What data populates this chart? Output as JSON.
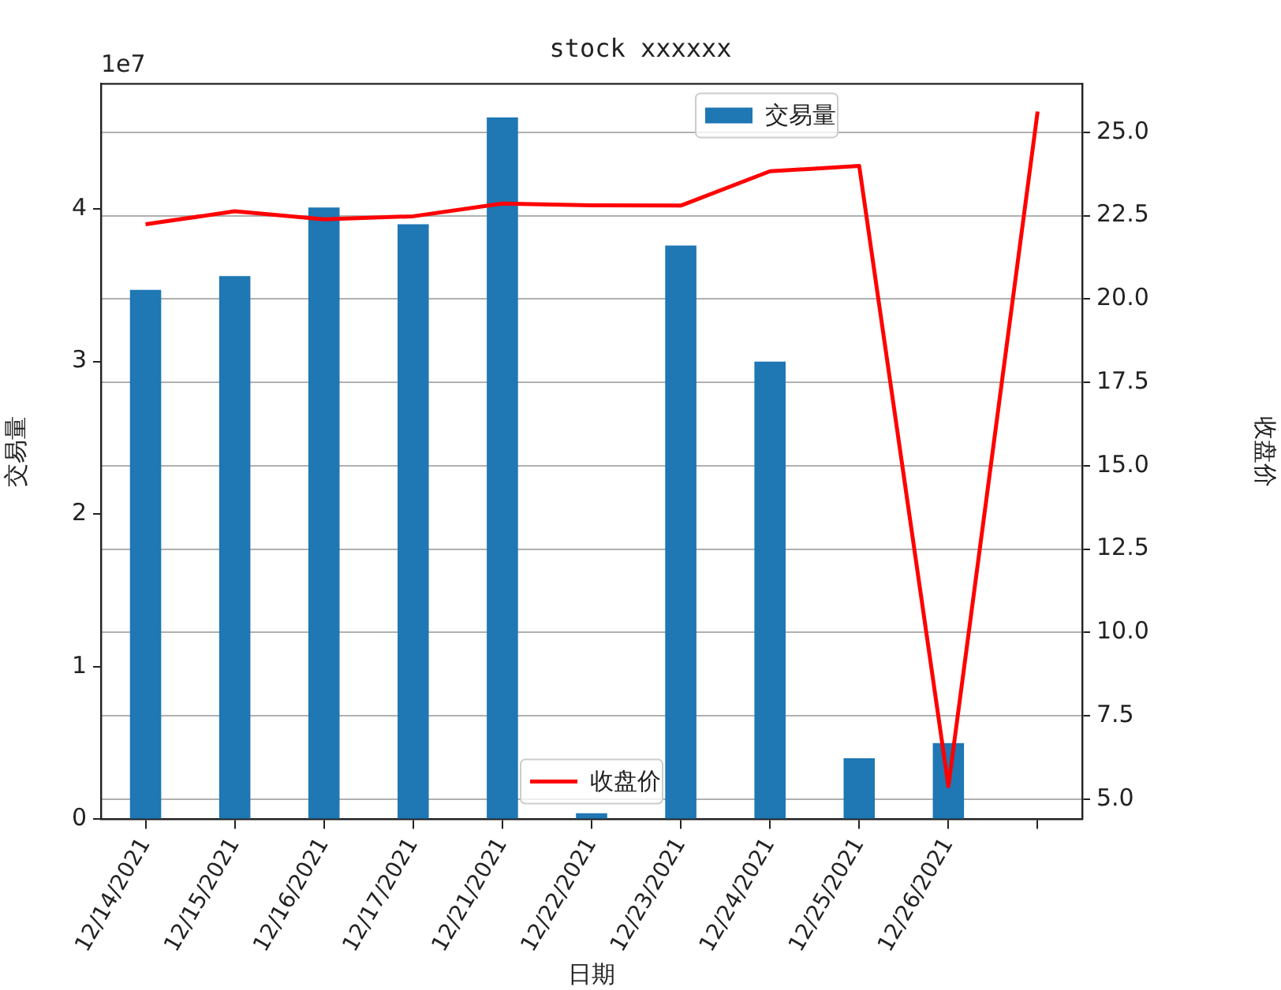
{
  "chart_data": {
    "type": "bar",
    "title": "stock xxxxxx",
    "xlabel": "日期",
    "ylabel": "交易量",
    "y2label": "收盘价",
    "annotations": [
      "1e7"
    ],
    "categories": [
      "12/14/2021",
      "12/15/2021",
      "12/16/2021",
      "12/17/2021",
      "12/21/2021",
      "12/22/2021",
      "12/23/2021",
      "12/24/2021",
      "12/25/2021",
      "12/26/2021",
      null
    ],
    "series": [
      {
        "name": "交易量",
        "color": "#1f77b4",
        "values": [
          3.47,
          3.56,
          4.01,
          3.9,
          4.6,
          0.04,
          3.76,
          3.0,
          0.4,
          0.5,
          null
        ]
      },
      {
        "name": "收盘价",
        "type": "line",
        "axis": "y2",
        "color": "#ff0000",
        "values": [
          22.24,
          22.63,
          22.39,
          22.48,
          22.86,
          22.81,
          22.8,
          23.83,
          23.99,
          5.39,
          25.62
        ]
      }
    ],
    "ylim": [
      0,
      4.82
    ],
    "yticks": [
      0,
      1,
      2,
      3,
      4
    ],
    "y2lim": [
      4.4,
      26.45
    ],
    "y2ticks": [
      {
        "value": 5,
        "label": "5.0"
      },
      {
        "value": 7.5,
        "label": "7.5"
      },
      {
        "value": 10,
        "label": "10.0"
      },
      {
        "value": 12.5,
        "label": "12.5"
      },
      {
        "value": 15,
        "label": "15.0"
      },
      {
        "value": 17.5,
        "label": "17.5"
      },
      {
        "value": 20,
        "label": "20.0"
      },
      {
        "value": 22.5,
        "label": "22.5"
      },
      {
        "value": 25,
        "label": "25.0"
      }
    ],
    "grid": "y2",
    "legend": "top right",
    "marker": "none",
    "line_style": "solid"
  }
}
